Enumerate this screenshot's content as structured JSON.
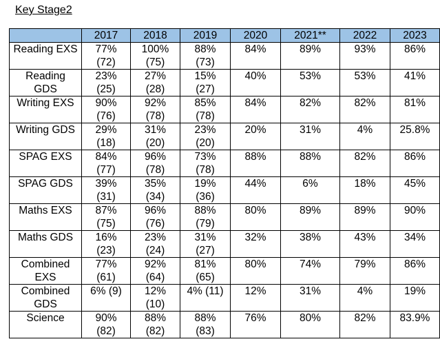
{
  "heading": "Key Stage2",
  "table": {
    "columns": [
      "",
      "2017",
      "2018",
      "2019",
      "2020",
      "2021**",
      "2022",
      "2023"
    ],
    "rows": [
      {
        "label": [
          "Reading EXS"
        ],
        "cells": [
          [
            "77%",
            "(72)"
          ],
          [
            "100%",
            "(75)"
          ],
          [
            "88%",
            "(73)"
          ],
          [
            "84%"
          ],
          [
            "89%"
          ],
          [
            "93%"
          ],
          [
            "86%"
          ]
        ]
      },
      {
        "label": [
          "Reading",
          "GDS"
        ],
        "cells": [
          [
            "23%",
            "(25)"
          ],
          [
            "27%",
            "(28)"
          ],
          [
            "15%",
            "(27)"
          ],
          [
            "40%"
          ],
          [
            "53%"
          ],
          [
            "53%"
          ],
          [
            "41%"
          ]
        ]
      },
      {
        "label": [
          "Writing EXS"
        ],
        "cells": [
          [
            "90%",
            "(76)"
          ],
          [
            "92%",
            "(78)"
          ],
          [
            "85%",
            "(78)"
          ],
          [
            "84%"
          ],
          [
            "82%"
          ],
          [
            "82%"
          ],
          [
            "81%"
          ]
        ]
      },
      {
        "label": [
          "Writing GDS"
        ],
        "cells": [
          [
            "29%",
            "(18)"
          ],
          [
            "31%",
            "(20)"
          ],
          [
            "23%",
            "(20)"
          ],
          [
            "20%"
          ],
          [
            "31%"
          ],
          [
            "4%"
          ],
          [
            "25.8%"
          ]
        ]
      },
      {
        "label": [
          "SPAG EXS"
        ],
        "cells": [
          [
            "84%",
            "(77)"
          ],
          [
            "96%",
            "(78)"
          ],
          [
            "73%",
            "(78)"
          ],
          [
            "88%"
          ],
          [
            "88%"
          ],
          [
            "82%"
          ],
          [
            "86%"
          ]
        ]
      },
      {
        "label": [
          "SPAG GDS"
        ],
        "cells": [
          [
            "39%",
            "(31)"
          ],
          [
            "35%",
            "(34)"
          ],
          [
            "19%",
            "(36)"
          ],
          [
            "44%"
          ],
          [
            "6%"
          ],
          [
            "18%"
          ],
          [
            "45%"
          ]
        ]
      },
      {
        "label": [
          "Maths EXS"
        ],
        "cells": [
          [
            "87%",
            "(75)"
          ],
          [
            "96%",
            "(76)"
          ],
          [
            "88%",
            "(79)"
          ],
          [
            "80%"
          ],
          [
            "89%"
          ],
          [
            "89%"
          ],
          [
            "90%"
          ]
        ]
      },
      {
        "label": [
          "Maths GDS"
        ],
        "cells": [
          [
            "16%",
            "(23)"
          ],
          [
            "23%",
            "(24)"
          ],
          [
            "31%",
            "(27)"
          ],
          [
            "32%"
          ],
          [
            "38%"
          ],
          [
            "43%"
          ],
          [
            "34%"
          ]
        ]
      },
      {
        "label": [
          "Combined",
          "EXS"
        ],
        "cells": [
          [
            "77%",
            "(61)"
          ],
          [
            "92%",
            "(64)"
          ],
          [
            "81%",
            "(65)"
          ],
          [
            "80%"
          ],
          [
            "74%"
          ],
          [
            "79%"
          ],
          [
            "86%"
          ]
        ]
      },
      {
        "label": [
          "Combined",
          "GDS"
        ],
        "cells": [
          [
            "6% (9)"
          ],
          [
            "12%",
            "(10)"
          ],
          [
            "4% (11)"
          ],
          [
            "12%"
          ],
          [
            "31%"
          ],
          [
            "4%"
          ],
          [
            "19%"
          ]
        ]
      },
      {
        "label": [
          "Science"
        ],
        "cells": [
          [
            "90%",
            "(82)"
          ],
          [
            "88%",
            "(82)"
          ],
          [
            "88%",
            "(83)"
          ],
          [
            "76%"
          ],
          [
            "80%"
          ],
          [
            "82%"
          ],
          [
            "83.9%"
          ]
        ]
      }
    ]
  },
  "colors": {
    "header_fill": "#9dc3e6",
    "border": "#000000"
  }
}
